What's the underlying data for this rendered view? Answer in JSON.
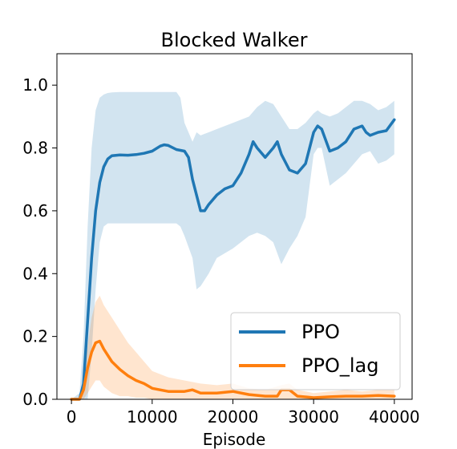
{
  "chart_data": {
    "type": "line",
    "title": "Blocked Walker",
    "xlabel": "Episode",
    "ylabel": "",
    "xlim": [
      -1800,
      42200
    ],
    "ylim": [
      0,
      1.1
    ],
    "xticks": [
      0,
      10000,
      20000,
      30000,
      40000
    ],
    "xtick_labels": [
      "0",
      "10000",
      "20000",
      "30000",
      "40000"
    ],
    "yticks": [
      0,
      0.2,
      0.4,
      0.6,
      0.8,
      1.0
    ],
    "ytick_labels": [
      "0.0",
      "0.2",
      "0.4",
      "0.6",
      "0.8",
      "1.0"
    ],
    "grid": false,
    "legend_position": "bottom-right",
    "series": [
      {
        "name": "PPO",
        "color": "#1f77b4",
        "x": [
          0,
          1000,
          1500,
          2000,
          2500,
          3000,
          3500,
          4000,
          4500,
          5000,
          6000,
          7000,
          8000,
          9000,
          10000,
          11000,
          11500,
          12000,
          13000,
          14000,
          14500,
          15000,
          16000,
          16500,
          17000,
          18000,
          19000,
          20000,
          21000,
          22000,
          22500,
          23000,
          24000,
          25000,
          25500,
          26000,
          27000,
          28000,
          29000,
          30000,
          30500,
          31000,
          32000,
          33000,
          34000,
          35000,
          36000,
          36500,
          37000,
          38000,
          39000,
          40000
        ],
        "y": [
          0.0,
          0.0,
          0.05,
          0.25,
          0.45,
          0.6,
          0.69,
          0.74,
          0.765,
          0.775,
          0.778,
          0.777,
          0.779,
          0.783,
          0.79,
          0.806,
          0.81,
          0.808,
          0.795,
          0.79,
          0.77,
          0.7,
          0.6,
          0.6,
          0.62,
          0.65,
          0.67,
          0.68,
          0.72,
          0.78,
          0.82,
          0.8,
          0.77,
          0.8,
          0.82,
          0.78,
          0.73,
          0.72,
          0.75,
          0.85,
          0.87,
          0.86,
          0.79,
          0.8,
          0.82,
          0.86,
          0.87,
          0.85,
          0.84,
          0.85,
          0.855,
          0.89
        ]
      },
      {
        "name": "PPO_lag",
        "color": "#ff7f0e",
        "x": [
          0,
          1000,
          1500,
          2000,
          2500,
          3000,
          3500,
          4000,
          5000,
          6000,
          7000,
          8000,
          9000,
          10000,
          12000,
          14000,
          15000,
          16000,
          18000,
          20000,
          22000,
          24000,
          25500,
          26000,
          27000,
          28000,
          30000,
          32000,
          34000,
          36000,
          38000,
          40000
        ],
        "y": [
          0.0,
          0.0,
          0.03,
          0.1,
          0.15,
          0.18,
          0.185,
          0.16,
          0.12,
          0.095,
          0.075,
          0.06,
          0.05,
          0.035,
          0.025,
          0.025,
          0.03,
          0.02,
          0.02,
          0.025,
          0.015,
          0.01,
          0.01,
          0.03,
          0.03,
          0.01,
          0.005,
          0.008,
          0.01,
          0.01,
          0.012,
          0.01
        ]
      }
    ],
    "bands": [
      {
        "series": "PPO",
        "color": "#1f77b4",
        "opacity": 0.2,
        "x": [
          0,
          1000,
          1500,
          2000,
          2500,
          3000,
          3500,
          4000,
          4500,
          5000,
          6000,
          8000,
          10000,
          12000,
          13000,
          13500,
          14000,
          15000,
          15500,
          16000,
          17000,
          18000,
          20000,
          22000,
          23000,
          24000,
          25000,
          26000,
          27000,
          28000,
          29000,
          30000,
          30500,
          31000,
          32000,
          33000,
          34000,
          35000,
          36000,
          37000,
          38000,
          39000,
          40000
        ],
        "upper": [
          0.0,
          0.02,
          0.2,
          0.55,
          0.8,
          0.92,
          0.96,
          0.97,
          0.975,
          0.977,
          0.978,
          0.978,
          0.978,
          0.978,
          0.978,
          0.96,
          0.88,
          0.82,
          0.85,
          0.84,
          0.85,
          0.86,
          0.88,
          0.9,
          0.93,
          0.95,
          0.94,
          0.9,
          0.86,
          0.86,
          0.88,
          0.91,
          0.92,
          0.91,
          0.9,
          0.91,
          0.93,
          0.95,
          0.95,
          0.94,
          0.92,
          0.93,
          0.95
        ],
        "lower": [
          0.0,
          0.0,
          0.0,
          0.0,
          0.15,
          0.35,
          0.5,
          0.55,
          0.56,
          0.56,
          0.56,
          0.56,
          0.56,
          0.56,
          0.56,
          0.55,
          0.52,
          0.45,
          0.35,
          0.36,
          0.4,
          0.45,
          0.48,
          0.52,
          0.53,
          0.52,
          0.5,
          0.43,
          0.48,
          0.52,
          0.58,
          0.78,
          0.8,
          0.8,
          0.68,
          0.7,
          0.72,
          0.75,
          0.78,
          0.79,
          0.75,
          0.76,
          0.78
        ]
      },
      {
        "series": "PPO_lag",
        "color": "#ff7f0e",
        "opacity": 0.2,
        "x": [
          0,
          1000,
          1500,
          2000,
          2500,
          3000,
          3500,
          4000,
          5000,
          6000,
          7000,
          8000,
          9000,
          10000,
          12000,
          14000,
          16000,
          18000,
          20000,
          22000,
          24000,
          26000,
          27000,
          28000,
          30000,
          32000,
          34000,
          36000,
          38000,
          40000
        ],
        "upper": [
          0.0,
          0.0,
          0.06,
          0.17,
          0.26,
          0.31,
          0.33,
          0.3,
          0.26,
          0.22,
          0.18,
          0.15,
          0.12,
          0.09,
          0.07,
          0.06,
          0.05,
          0.045,
          0.05,
          0.035,
          0.03,
          0.045,
          0.05,
          0.03,
          0.02,
          0.025,
          0.03,
          0.025,
          0.03,
          0.03
        ],
        "lower": [
          0.0,
          0.0,
          0.0,
          0.02,
          0.04,
          0.06,
          0.06,
          0.04,
          0.02,
          0.01,
          0.01,
          0.005,
          0.005,
          0.0,
          0.0,
          0.0,
          0.0,
          0.0,
          0.0,
          0.0,
          0.0,
          0.0,
          0.0,
          0.0,
          0.0,
          0.0,
          0.0,
          0.0,
          0.0,
          0.0
        ]
      }
    ]
  }
}
